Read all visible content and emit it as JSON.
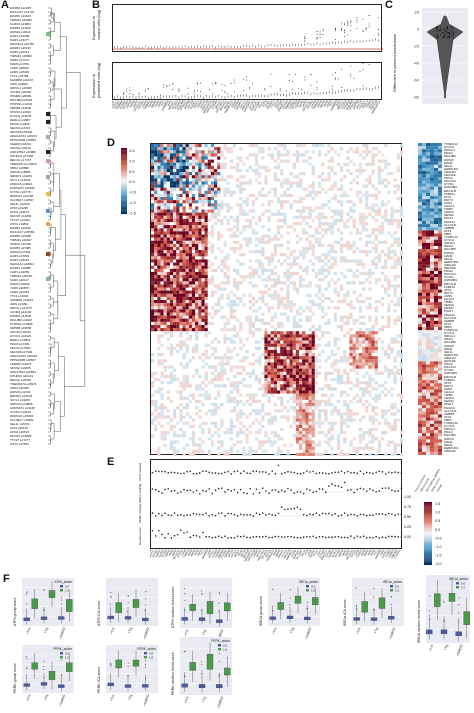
{
  "panels": {
    "A": "A",
    "B": "B",
    "C": "C",
    "D": "D",
    "E": "E",
    "F": "F"
  },
  "panel_b": {
    "top_ylabel": "Expression in\ncontrol cells (log)",
    "bottom_ylabel": "Expression in\nperturbed cells (log)"
  },
  "panel_c": {
    "ylabel": "Difference in percent knockdown",
    "ticks": [
      "20",
      "0",
      "-20",
      "-40",
      "-60",
      "-80"
    ]
  },
  "panel_a": {
    "genes": [
      "EIF2B4",
      "DNAJC17",
      "EIF2B2",
      "TIMM44",
      "SLMO2",
      "EIF2B3",
      "HSPA9",
      "HARS",
      "DARS",
      "SEC61A1",
      "EIF2B1",
      "CARS",
      "TIMM23",
      "SARS",
      "MARS",
      "YARS",
      "AARS",
      "TTC1",
      "SAMM50",
      "IARS",
      "MIPOL1",
      "CCND3",
      "PSMD4",
      "DNAJB9",
      "PTDSS1",
      "SRPRB",
      "SPCS3",
      "HYOU1",
      "DERL2",
      "PDIA6",
      "SEC63",
      "SEC61B",
      "ARHGAP22",
      "PPP1R15B",
      "CHERP",
      "SPCS2",
      "HSD17B12",
      "MTHFD1",
      "RECQL",
      "TMEM167A",
      "XRN2",
      "HSPA5",
      "IER3IP1",
      "SCYL1",
      "AMIGO3",
      "GNPNAT1",
      "SYVN1",
      "DDRGK1",
      "SLC39A7",
      "SEL1L",
      "ATF6",
      "UFM1",
      "DDOST",
      "TTC27",
      "OST4"
    ]
  },
  "panel_d": {
    "colorbar_ticks": [
      "1.5",
      "1.0",
      "0.5",
      "0.0",
      "-0.5",
      "-1.0",
      "-1.5"
    ],
    "right_genes": [
      "TXNDC12",
      "HYOU1",
      "SDF2L1",
      "PDIA4",
      "DNAJB9",
      "HSPA5",
      "MANF",
      "SEL1L",
      "HERPUD1",
      "CRELD2",
      "SEC61B",
      "PDIA6",
      "DNAJC3",
      "SYVN1",
      "HSP90B1",
      "ERO1LB",
      "FKBP11",
      "ATF4",
      "DDIT3",
      "ASNS",
      "CHAC1",
      "TRIB3",
      "VEGFA",
      "SESN2",
      "PSAT1",
      "PHGDH",
      "SLC7A11",
      "CEBPB",
      "ATF3",
      "XBP1"
    ]
  },
  "panel_e": {
    "row_labels": [
      "ATF6 ranking",
      "IRE1α ranking",
      "PERK ranking",
      "Growth score"
    ],
    "legend_rows": [
      "Fraction\ninduced",
      "IRE1α\nactivity",
      "Non-targeting\nsgRNAs",
      "PERK activity",
      "Growth"
    ],
    "right_ticks": [
      "1.00",
      "0.75",
      "0.50",
      "0.25",
      "0.00"
    ],
    "colorbar_ticks": [
      "1.5",
      "1.0",
      "0.5",
      "0.0",
      "-0.5",
      "-1.0",
      "-1.5",
      "-2.0"
    ]
  },
  "panel_f": {
    "plots": [
      {
        "ylabel": "ATF6 group score",
        "legend_title": "ATF6_active",
        "legend": [
          "0.0",
          "1.0"
        ]
      },
      {
        "ylabel": "ATF6 ICA score",
        "legend_title": "",
        "legend": []
      },
      {
        "ylabel": "ATF6 random forest score",
        "legend_title": "",
        "legend": []
      },
      {
        "ylabel": "IRE1α group score",
        "legend_title": "IRE1α_active",
        "legend": [
          "0.0",
          "1.0"
        ]
      },
      {
        "ylabel": "IRE1α ICA score",
        "legend_title": "IRE1α_active",
        "legend": [
          "0.0",
          "1.0"
        ]
      },
      {
        "ylabel": "IRE1α random forest score",
        "legend_title": "IRE1α_active",
        "legend": [
          "0.0",
          "1.0"
        ]
      },
      {
        "ylabel": "PERK group score",
        "legend_title": "PERK_active",
        "legend": [
          "0.0",
          "1.0"
        ]
      },
      {
        "ylabel": "PERK ICA score",
        "legend_title": "PERK_active",
        "legend": [
          "0.0",
          "1.0"
        ]
      },
      {
        "ylabel": "PERK random forest score",
        "legend_title": "PERK_active",
        "legend": [
          "0.0",
          "1.0"
        ]
      }
    ],
    "xticks": [
      "+Tm",
      "+Tg",
      "+DMSO"
    ],
    "colors": {
      "inactive": "#4a5aa8",
      "active": "#4a9a4a",
      "background": "#eaeaf2"
    }
  },
  "palette": {
    "red": "#67001f",
    "mid": "#f7f7f7",
    "blue": "#053061"
  }
}
